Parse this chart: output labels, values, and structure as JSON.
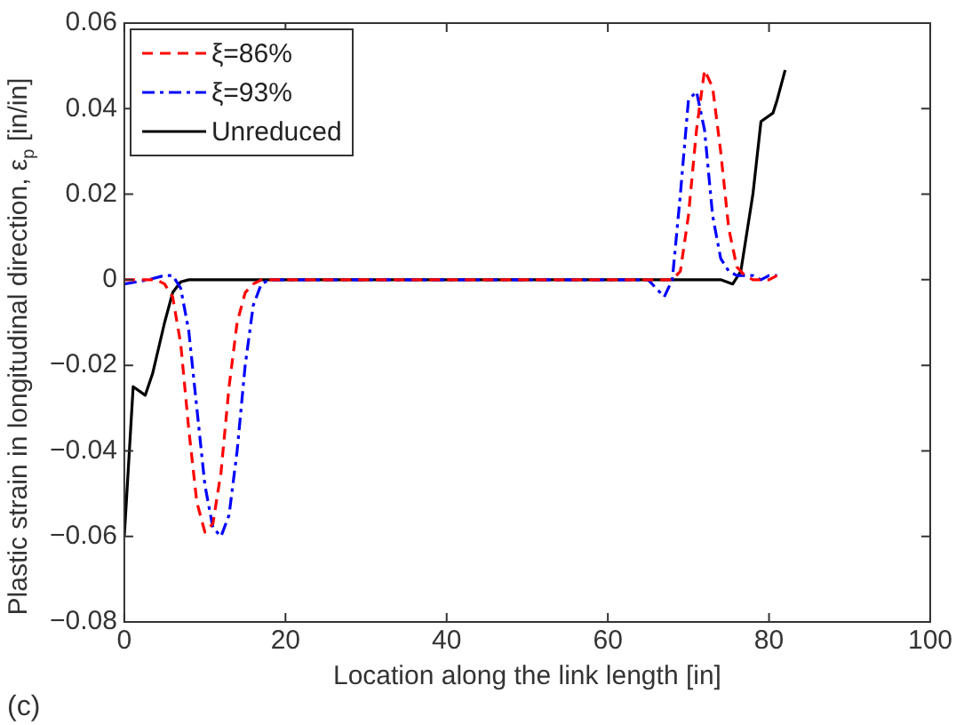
{
  "chart_data": {
    "type": "line",
    "xlabel": "Location along the link length [in]",
    "ylabel": "Plastic strain in longitudinal direction, ε$_{p}$ [in/in]",
    "annotations": [
      "(c)"
    ],
    "xlim": [
      0,
      100
    ],
    "xticks": [
      0,
      20,
      40,
      60,
      80,
      100
    ],
    "ylim": [
      -0.08,
      0.06
    ],
    "yticks": [
      -0.08,
      -0.06,
      -0.04,
      -0.02,
      0,
      0.02,
      0.04,
      0.06
    ],
    "grid": false,
    "legend": "top left",
    "marker": "none",
    "series": [
      {
        "name": "ξ=86%",
        "color": "#ff0000",
        "line_style": "dashed",
        "x": [
          0,
          2,
          4,
          5,
          6,
          7,
          8,
          9,
          10,
          11,
          12,
          13,
          14,
          15,
          16,
          17,
          18,
          30,
          60,
          66,
          68,
          69,
          70,
          71,
          72,
          73,
          74,
          75,
          76,
          77,
          78,
          80,
          81
        ],
        "values": [
          0,
          0,
          0,
          -0.001,
          -0.004,
          -0.015,
          -0.035,
          -0.052,
          -0.059,
          -0.057,
          -0.045,
          -0.025,
          -0.01,
          -0.003,
          -0.001,
          0,
          0,
          0,
          0,
          0,
          0,
          0.002,
          0.015,
          0.035,
          0.049,
          0.045,
          0.03,
          0.012,
          0.003,
          0.001,
          0,
          0,
          0.001
        ]
      },
      {
        "name": "ξ=93%",
        "color": "#0000ff",
        "line_style": "dashdot",
        "x": [
          0,
          3,
          5,
          6,
          7,
          8,
          9,
          10,
          11,
          12,
          13,
          14,
          15,
          16,
          17,
          18,
          30,
          60,
          65,
          66,
          67,
          68,
          69,
          70,
          71,
          72,
          73,
          74,
          75,
          76,
          78,
          79,
          80,
          81
        ],
        "values": [
          -0.001,
          0,
          0.001,
          0.001,
          -0.002,
          -0.012,
          -0.03,
          -0.048,
          -0.058,
          -0.06,
          -0.055,
          -0.04,
          -0.02,
          -0.006,
          -0.001,
          0,
          0,
          0,
          0,
          -0.002,
          -0.004,
          0,
          0.02,
          0.042,
          0.044,
          0.035,
          0.015,
          0.005,
          0.002,
          0.001,
          0.001,
          0,
          0.001,
          0.001
        ]
      },
      {
        "name": "Unreduced",
        "color": "#000000",
        "line_style": "solid",
        "x": [
          0,
          1.1,
          2.6,
          3.5,
          5,
          6,
          7,
          8,
          20,
          60,
          74,
          75.5,
          76.5,
          78,
          79,
          80.5,
          81,
          82
        ],
        "values": [
          -0.06,
          -0.025,
          -0.027,
          -0.022,
          -0.01,
          -0.003,
          -0.0005,
          0,
          0,
          0,
          0,
          -0.001,
          0.002,
          0.02,
          0.037,
          0.039,
          0.042,
          0.049
        ]
      }
    ]
  }
}
